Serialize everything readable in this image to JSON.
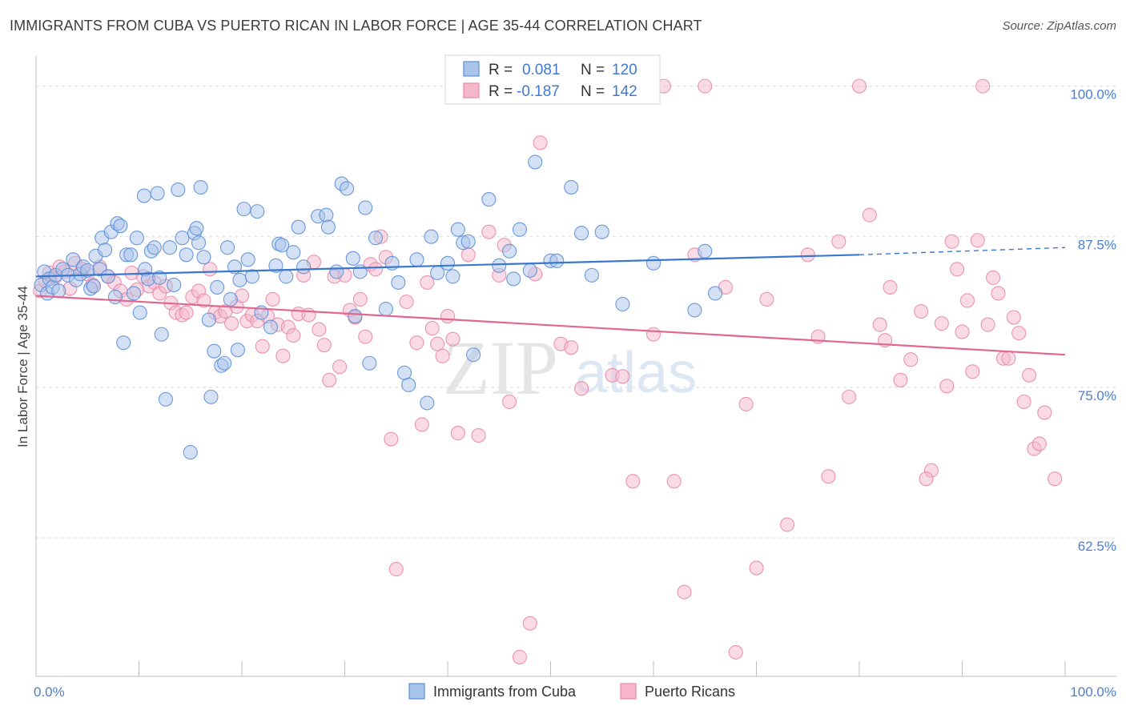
{
  "header": {
    "title": "IMMIGRANTS FROM CUBA VS PUERTO RICAN IN LABOR FORCE | AGE 35-44 CORRELATION CHART",
    "source": "Source: ZipAtlas.com"
  },
  "colors": {
    "blue_fill": "#a9c4ea",
    "blue_stroke": "#5b8fd9",
    "blue_line": "#3a78cc",
    "pink_fill": "#f5b8cb",
    "pink_stroke": "#e88aa8",
    "pink_line": "#e06890",
    "grid": "#d8d8d8",
    "axis_label": "#4a7fd0"
  },
  "chart_data": {
    "type": "scatter",
    "title": "IMMIGRANTS FROM CUBA VS PUERTO RICAN IN LABOR FORCE | AGE 35-44 CORRELATION CHART",
    "xlabel": "",
    "ylabel": "In Labor Force | Age 35-44",
    "xlim": [
      0,
      100
    ],
    "ylim": [
      51,
      102.5
    ],
    "x_tick_labels": [
      "0.0%",
      "100.0%"
    ],
    "y_ticks": [
      62.5,
      75.0,
      87.5,
      100.0
    ],
    "y_tick_labels": [
      "62.5%",
      "75.0%",
      "87.5%",
      "100.0%"
    ],
    "grid": "horizontal dashed",
    "legend_top": {
      "r_label": "R =",
      "n_label": "N =",
      "rows": [
        {
          "r": "0.081",
          "n": "120"
        },
        {
          "r": "-0.187",
          "n": "142"
        }
      ]
    },
    "legend_bottom": [
      "Immigrants from Cuba",
      "Puerto Ricans"
    ],
    "watermark": "ZIPatlas",
    "series": [
      {
        "name": "Immigrants from Cuba",
        "trend": {
          "x": [
            0,
            80
          ],
          "y": [
            84.2,
            86.0
          ],
          "dashed_to": [
            100,
            86.6
          ]
        },
        "points": [
          [
            0.5,
            83.5
          ],
          [
            0.8,
            84.6
          ],
          [
            1.1,
            82.8
          ],
          [
            1.3,
            84.0
          ],
          [
            1.6,
            83.3
          ],
          [
            1.9,
            84.3
          ],
          [
            2.2,
            83.0
          ],
          [
            2.6,
            84.8
          ],
          [
            3.1,
            84.3
          ],
          [
            3.6,
            85.6
          ],
          [
            3.9,
            83.9
          ],
          [
            4.3,
            84.4
          ],
          [
            4.6,
            85.0
          ],
          [
            5.0,
            84.7
          ],
          [
            5.3,
            83.2
          ],
          [
            5.6,
            83.4
          ],
          [
            5.8,
            85.9
          ],
          [
            6.2,
            84.8
          ],
          [
            6.4,
            87.4
          ],
          [
            6.7,
            86.4
          ],
          [
            7.0,
            84.2
          ],
          [
            7.3,
            87.9
          ],
          [
            7.7,
            82.5
          ],
          [
            7.9,
            88.6
          ],
          [
            8.2,
            88.4
          ],
          [
            8.5,
            78.7
          ],
          [
            8.8,
            86.0
          ],
          [
            9.2,
            86.0
          ],
          [
            9.8,
            87.4
          ],
          [
            10.1,
            81.2
          ],
          [
            10.6,
            84.8
          ],
          [
            10.5,
            90.9
          ],
          [
            10.9,
            84.0
          ],
          [
            11.2,
            86.3
          ],
          [
            11.5,
            86.6
          ],
          [
            11.8,
            91.1
          ],
          [
            12.2,
            79.4
          ],
          [
            12.6,
            74.0
          ],
          [
            13.0,
            86.6
          ],
          [
            13.4,
            83.5
          ],
          [
            13.8,
            91.4
          ],
          [
            14.2,
            87.4
          ],
          [
            14.6,
            86.0
          ],
          [
            15.0,
            69.6
          ],
          [
            15.4,
            87.8
          ],
          [
            15.6,
            88.2
          ],
          [
            16.0,
            91.6
          ],
          [
            16.3,
            85.8
          ],
          [
            16.8,
            80.6
          ],
          [
            17.0,
            74.2
          ],
          [
            17.3,
            78.0
          ],
          [
            17.6,
            83.3
          ],
          [
            18.0,
            76.8
          ],
          [
            18.3,
            77.0
          ],
          [
            18.6,
            86.6
          ],
          [
            18.9,
            82.3
          ],
          [
            19.3,
            85.0
          ],
          [
            19.6,
            78.1
          ],
          [
            19.8,
            83.9
          ],
          [
            20.2,
            89.8
          ],
          [
            20.6,
            85.6
          ],
          [
            21.0,
            84.2
          ],
          [
            21.5,
            89.6
          ],
          [
            21.9,
            81.2
          ],
          [
            22.8,
            80.0
          ],
          [
            23.3,
            85.1
          ],
          [
            23.6,
            86.9
          ],
          [
            23.9,
            86.8
          ],
          [
            24.3,
            84.2
          ],
          [
            25.0,
            86.2
          ],
          [
            25.5,
            88.3
          ],
          [
            26.0,
            85.0
          ],
          [
            27.4,
            89.2
          ],
          [
            28.2,
            89.3
          ],
          [
            28.4,
            88.3
          ],
          [
            29.2,
            84.6
          ],
          [
            29.7,
            91.9
          ],
          [
            30.2,
            91.5
          ],
          [
            30.8,
            85.7
          ],
          [
            31.0,
            80.9
          ],
          [
            31.5,
            84.6
          ],
          [
            32.0,
            89.9
          ],
          [
            32.4,
            77.0
          ],
          [
            33.0,
            87.4
          ],
          [
            34.0,
            81.5
          ],
          [
            34.6,
            85.3
          ],
          [
            35.2,
            83.7
          ],
          [
            35.8,
            76.2
          ],
          [
            36.2,
            75.2
          ],
          [
            37.0,
            85.6
          ],
          [
            38.0,
            73.7
          ],
          [
            38.4,
            87.5
          ],
          [
            39.0,
            84.5
          ],
          [
            40.0,
            85.3
          ],
          [
            40.5,
            84.2
          ],
          [
            41.0,
            88.1
          ],
          [
            41.5,
            87.0
          ],
          [
            42.0,
            87.1
          ],
          [
            42.5,
            77.7
          ],
          [
            44.0,
            90.6
          ],
          [
            45.0,
            85.1
          ],
          [
            46.0,
            86.3
          ],
          [
            46.4,
            84.0
          ],
          [
            47.0,
            88.1
          ],
          [
            48.5,
            93.7
          ],
          [
            50.0,
            85.5
          ],
          [
            50.6,
            85.5
          ],
          [
            52.0,
            91.6
          ],
          [
            53.0,
            87.8
          ],
          [
            54.0,
            84.3
          ],
          [
            55.0,
            87.9
          ],
          [
            57.0,
            81.9
          ],
          [
            60.0,
            85.3
          ],
          [
            64.0,
            81.4
          ],
          [
            65.0,
            86.3
          ],
          [
            66.0,
            82.8
          ],
          [
            48.0,
            84.7
          ],
          [
            12.0,
            84.1
          ],
          [
            9.5,
            82.8
          ],
          [
            15.8,
            87.0
          ]
        ]
      },
      {
        "name": "Puerto Ricans",
        "trend": {
          "x": [
            0,
            100
          ],
          "y": [
            82.6,
            77.7
          ]
        },
        "points": [
          [
            0.4,
            83.0
          ],
          [
            0.9,
            83.8
          ],
          [
            1.3,
            84.5
          ],
          [
            1.8,
            84.1
          ],
          [
            2.3,
            85.0
          ],
          [
            2.8,
            84.6
          ],
          [
            3.3,
            83.2
          ],
          [
            3.8,
            85.3
          ],
          [
            4.5,
            84.8
          ],
          [
            5.0,
            84.4
          ],
          [
            5.5,
            83.5
          ],
          [
            6.2,
            85.0
          ],
          [
            7.0,
            84.2
          ],
          [
            7.6,
            83.7
          ],
          [
            8.2,
            83.0
          ],
          [
            8.8,
            82.3
          ],
          [
            9.3,
            84.5
          ],
          [
            9.8,
            83.1
          ],
          [
            10.4,
            84.2
          ],
          [
            11.0,
            83.4
          ],
          [
            11.5,
            83.7
          ],
          [
            12.0,
            82.8
          ],
          [
            12.6,
            83.4
          ],
          [
            13.1,
            82.0
          ],
          [
            13.6,
            81.2
          ],
          [
            14.2,
            81.0
          ],
          [
            14.6,
            81.2
          ],
          [
            15.2,
            82.5
          ],
          [
            15.8,
            83.0
          ],
          [
            16.3,
            82.2
          ],
          [
            16.9,
            84.8
          ],
          [
            17.4,
            81.2
          ],
          [
            17.9,
            80.9
          ],
          [
            18.4,
            81.3
          ],
          [
            19.0,
            80.3
          ],
          [
            19.5,
            81.7
          ],
          [
            20.0,
            82.6
          ],
          [
            20.5,
            80.5
          ],
          [
            21.0,
            81.0
          ],
          [
            21.5,
            80.5
          ],
          [
            22.0,
            78.4
          ],
          [
            22.5,
            80.9
          ],
          [
            23.0,
            82.3
          ],
          [
            23.5,
            80.2
          ],
          [
            24.0,
            77.6
          ],
          [
            24.5,
            80.0
          ],
          [
            25.0,
            79.3
          ],
          [
            25.5,
            81.1
          ],
          [
            26.0,
            84.3
          ],
          [
            26.5,
            81.0
          ],
          [
            27.0,
            85.4
          ],
          [
            27.5,
            79.8
          ],
          [
            28.0,
            78.5
          ],
          [
            28.5,
            75.6
          ],
          [
            29.0,
            84.2
          ],
          [
            29.5,
            76.7
          ],
          [
            30.0,
            84.3
          ],
          [
            30.5,
            81.4
          ],
          [
            31.0,
            80.8
          ],
          [
            31.5,
            82.3
          ],
          [
            32.0,
            79.2
          ],
          [
            32.5,
            85.2
          ],
          [
            33.0,
            84.8
          ],
          [
            33.5,
            87.5
          ],
          [
            34.0,
            85.8
          ],
          [
            34.5,
            70.7
          ],
          [
            35.0,
            59.9
          ],
          [
            36.0,
            82.1
          ],
          [
            37.0,
            78.7
          ],
          [
            37.5,
            71.9
          ],
          [
            38.0,
            83.7
          ],
          [
            38.5,
            79.9
          ],
          [
            39.0,
            78.6
          ],
          [
            39.5,
            77.6
          ],
          [
            40.0,
            80.9
          ],
          [
            40.5,
            79.0
          ],
          [
            41.0,
            71.2
          ],
          [
            42.0,
            86.0
          ],
          [
            43.0,
            71.0
          ],
          [
            44.0,
            87.9
          ],
          [
            45.0,
            84.3
          ],
          [
            45.5,
            86.8
          ],
          [
            46.0,
            73.8
          ],
          [
            47.0,
            52.6
          ],
          [
            48.0,
            55.4
          ],
          [
            48.5,
            84.4
          ],
          [
            49.0,
            95.3
          ],
          [
            51.0,
            78.6
          ],
          [
            53.0,
            74.9
          ],
          [
            56.0,
            76.0
          ],
          [
            58.0,
            67.2
          ],
          [
            60.0,
            79.4
          ],
          [
            61.0,
            100.0
          ],
          [
            62.0,
            67.2
          ],
          [
            63.0,
            58.0
          ],
          [
            64.0,
            86.0
          ],
          [
            65.0,
            100.0
          ],
          [
            67.0,
            83.3
          ],
          [
            69.0,
            73.6
          ],
          [
            71.0,
            82.3
          ],
          [
            73.0,
            63.6
          ],
          [
            75.0,
            86.0
          ],
          [
            77.0,
            67.6
          ],
          [
            78.0,
            87.1
          ],
          [
            79.0,
            74.2
          ],
          [
            80.0,
            100.0
          ],
          [
            81.0,
            89.3
          ],
          [
            82.0,
            80.2
          ],
          [
            83.0,
            83.3
          ],
          [
            84.0,
            75.6
          ],
          [
            85.0,
            77.3
          ],
          [
            86.0,
            81.3
          ],
          [
            87.0,
            68.1
          ],
          [
            88.0,
            80.3
          ],
          [
            89.0,
            87.1
          ],
          [
            90.0,
            79.6
          ],
          [
            91.0,
            76.3
          ],
          [
            92.0,
            100.0
          ],
          [
            93.0,
            84.1
          ],
          [
            94.0,
            77.4
          ],
          [
            95.0,
            80.8
          ],
          [
            96.0,
            73.8
          ],
          [
            97.0,
            69.9
          ],
          [
            98.0,
            72.9
          ],
          [
            99.0,
            67.4
          ],
          [
            97.5,
            70.3
          ],
          [
            96.5,
            76.0
          ],
          [
            95.5,
            79.5
          ],
          [
            94.5,
            77.4
          ],
          [
            93.5,
            82.8
          ],
          [
            92.5,
            80.2
          ],
          [
            91.5,
            87.2
          ],
          [
            90.5,
            82.2
          ],
          [
            89.5,
            84.8
          ],
          [
            88.5,
            75.1
          ],
          [
            86.5,
            67.4
          ],
          [
            82.5,
            78.9
          ],
          [
            76.0,
            79.2
          ],
          [
            70.0,
            60.0
          ],
          [
            68.0,
            53.0
          ],
          [
            57.0,
            75.9
          ],
          [
            52.0,
            78.3
          ]
        ]
      }
    ]
  }
}
